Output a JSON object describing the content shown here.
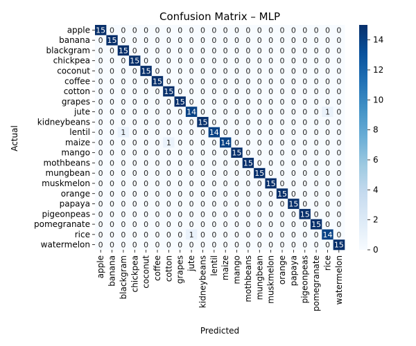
{
  "chart_data": {
    "type": "heatmap",
    "title": "Confusion Matrix – MLP",
    "xlabel": "Predicted",
    "ylabel": "Actual",
    "labels": [
      "apple",
      "banana",
      "blackgram",
      "chickpea",
      "coconut",
      "coffee",
      "cotton",
      "grapes",
      "jute",
      "kidneybeans",
      "lentil",
      "maize",
      "mango",
      "mothbeans",
      "mungbean",
      "muskmelon",
      "orange",
      "papaya",
      "pigeonpeas",
      "pomegranate",
      "rice",
      "watermelon"
    ],
    "values": [
      [
        15,
        0,
        0,
        0,
        0,
        0,
        0,
        0,
        0,
        0,
        0,
        0,
        0,
        0,
        0,
        0,
        0,
        0,
        0,
        0,
        0,
        0
      ],
      [
        0,
        15,
        0,
        0,
        0,
        0,
        0,
        0,
        0,
        0,
        0,
        0,
        0,
        0,
        0,
        0,
        0,
        0,
        0,
        0,
        0,
        0
      ],
      [
        0,
        0,
        15,
        0,
        0,
        0,
        0,
        0,
        0,
        0,
        0,
        0,
        0,
        0,
        0,
        0,
        0,
        0,
        0,
        0,
        0,
        0
      ],
      [
        0,
        0,
        0,
        15,
        0,
        0,
        0,
        0,
        0,
        0,
        0,
        0,
        0,
        0,
        0,
        0,
        0,
        0,
        0,
        0,
        0,
        0
      ],
      [
        0,
        0,
        0,
        0,
        15,
        0,
        0,
        0,
        0,
        0,
        0,
        0,
        0,
        0,
        0,
        0,
        0,
        0,
        0,
        0,
        0,
        0
      ],
      [
        0,
        0,
        0,
        0,
        0,
        15,
        0,
        0,
        0,
        0,
        0,
        0,
        0,
        0,
        0,
        0,
        0,
        0,
        0,
        0,
        0,
        0
      ],
      [
        0,
        0,
        0,
        0,
        0,
        0,
        15,
        0,
        0,
        0,
        0,
        0,
        0,
        0,
        0,
        0,
        0,
        0,
        0,
        0,
        0,
        0
      ],
      [
        0,
        0,
        0,
        0,
        0,
        0,
        0,
        15,
        0,
        0,
        0,
        0,
        0,
        0,
        0,
        0,
        0,
        0,
        0,
        0,
        0,
        0
      ],
      [
        0,
        0,
        0,
        0,
        0,
        0,
        0,
        0,
        14,
        0,
        0,
        0,
        0,
        0,
        0,
        0,
        0,
        0,
        0,
        0,
        1,
        0
      ],
      [
        0,
        0,
        0,
        0,
        0,
        0,
        0,
        0,
        0,
        15,
        0,
        0,
        0,
        0,
        0,
        0,
        0,
        0,
        0,
        0,
        0,
        0
      ],
      [
        0,
        0,
        1,
        0,
        0,
        0,
        0,
        0,
        0,
        0,
        14,
        0,
        0,
        0,
        0,
        0,
        0,
        0,
        0,
        0,
        0,
        0
      ],
      [
        0,
        0,
        0,
        0,
        0,
        0,
        1,
        0,
        0,
        0,
        0,
        14,
        0,
        0,
        0,
        0,
        0,
        0,
        0,
        0,
        0,
        0
      ],
      [
        0,
        0,
        0,
        0,
        0,
        0,
        0,
        0,
        0,
        0,
        0,
        0,
        15,
        0,
        0,
        0,
        0,
        0,
        0,
        0,
        0,
        0
      ],
      [
        0,
        0,
        0,
        0,
        0,
        0,
        0,
        0,
        0,
        0,
        0,
        0,
        0,
        15,
        0,
        0,
        0,
        0,
        0,
        0,
        0,
        0
      ],
      [
        0,
        0,
        0,
        0,
        0,
        0,
        0,
        0,
        0,
        0,
        0,
        0,
        0,
        0,
        15,
        0,
        0,
        0,
        0,
        0,
        0,
        0
      ],
      [
        0,
        0,
        0,
        0,
        0,
        0,
        0,
        0,
        0,
        0,
        0,
        0,
        0,
        0,
        0,
        15,
        0,
        0,
        0,
        0,
        0,
        0
      ],
      [
        0,
        0,
        0,
        0,
        0,
        0,
        0,
        0,
        0,
        0,
        0,
        0,
        0,
        0,
        0,
        0,
        15,
        0,
        0,
        0,
        0,
        0
      ],
      [
        0,
        0,
        0,
        0,
        0,
        0,
        0,
        0,
        0,
        0,
        0,
        0,
        0,
        0,
        0,
        0,
        0,
        15,
        0,
        0,
        0,
        0
      ],
      [
        0,
        0,
        0,
        0,
        0,
        0,
        0,
        0,
        0,
        0,
        0,
        0,
        0,
        0,
        0,
        0,
        0,
        0,
        15,
        0,
        0,
        0
      ],
      [
        0,
        0,
        0,
        0,
        0,
        0,
        0,
        0,
        0,
        0,
        0,
        0,
        0,
        0,
        0,
        0,
        0,
        0,
        0,
        15,
        0,
        0
      ],
      [
        0,
        0,
        0,
        0,
        0,
        0,
        0,
        0,
        1,
        0,
        0,
        0,
        0,
        0,
        0,
        0,
        0,
        0,
        0,
        0,
        14,
        0
      ],
      [
        0,
        0,
        0,
        0,
        0,
        0,
        0,
        0,
        0,
        0,
        0,
        0,
        0,
        0,
        0,
        0,
        0,
        0,
        0,
        0,
        0,
        15
      ]
    ],
    "vmin": 0,
    "vmax": 15,
    "colorbar_ticks": [
      0,
      2,
      4,
      6,
      8,
      10,
      12,
      14
    ],
    "colormap": [
      "#f7fbff",
      "#deebf7",
      "#c6dbef",
      "#9ecae1",
      "#6baed6",
      "#4292c6",
      "#2171b5",
      "#08519c",
      "#08306b"
    ]
  }
}
